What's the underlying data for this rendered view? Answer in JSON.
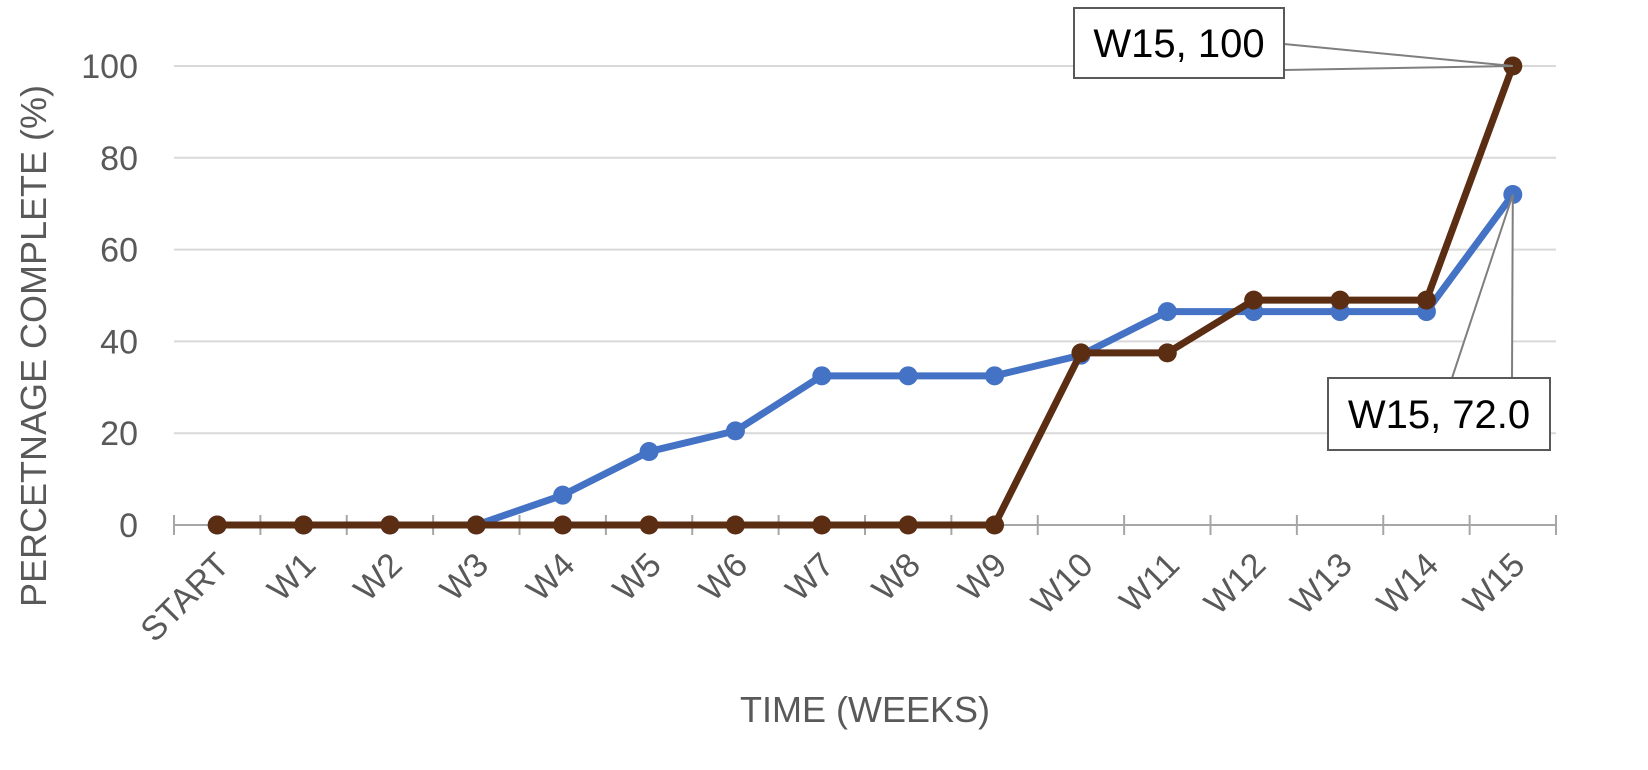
{
  "chart_data": {
    "type": "line",
    "title": "",
    "xlabel": "TIME (WEEKS)",
    "ylabel": "PERCETNAGE COMPLETE (%)",
    "categories": [
      "START",
      "W1",
      "W2",
      "W3",
      "W4",
      "W5",
      "W6",
      "W7",
      "W8",
      "W9",
      "W10",
      "W11",
      "W12",
      "W13",
      "W14",
      "W15"
    ],
    "ylim": [
      0,
      100
    ],
    "yticks": [
      0,
      20,
      40,
      60,
      80,
      100
    ],
    "grid": true,
    "legend": "none",
    "series": [
      {
        "color": "#4472C4",
        "values": [
          0,
          0,
          0,
          0,
          6.5,
          16,
          20.5,
          32.5,
          32.5,
          32.5,
          37,
          46.5,
          46.5,
          46.5,
          46.5,
          72
        ]
      },
      {
        "color": "#5B2E14",
        "values": [
          0,
          0,
          0,
          0,
          0,
          0,
          0,
          0,
          0,
          0,
          37.5,
          37.5,
          49,
          49,
          49,
          100
        ]
      }
    ],
    "annotations": [
      {
        "text": "W15, 100",
        "series": 1,
        "point": 15
      },
      {
        "text": "W15, 72.0",
        "series": 0,
        "point": 15
      }
    ]
  }
}
